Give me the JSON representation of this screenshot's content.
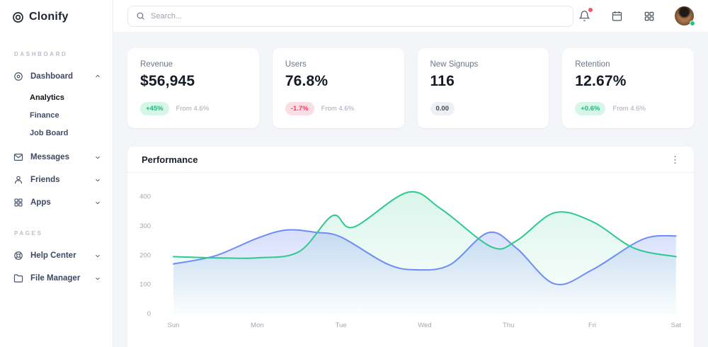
{
  "brand": {
    "name": "Clonify",
    "logo_icon": "clonify-disc-icon"
  },
  "sidebar": {
    "sections": [
      {
        "label": "DASHBOARD",
        "items": [
          {
            "label": "Dashboard",
            "icon": "dashboard-disc-icon",
            "expanded": true,
            "children": [
              "Analytics",
              "Finance",
              "Job Board"
            ],
            "active_child": "Analytics"
          },
          {
            "label": "Messages",
            "icon": "messages-icon",
            "expanded": false
          },
          {
            "label": "Friends",
            "icon": "friends-icon",
            "expanded": false
          },
          {
            "label": "Apps",
            "icon": "apps-icon",
            "expanded": false
          }
        ]
      },
      {
        "label": "PAGES",
        "items": [
          {
            "label": "Help Center",
            "icon": "help-lifebuoy-icon",
            "expanded": false
          },
          {
            "label": "File Manager",
            "icon": "folder-icon",
            "expanded": false
          }
        ]
      }
    ]
  },
  "topbar": {
    "search_placeholder": "Search...",
    "icons": [
      "bell-icon",
      "calendar-icon",
      "apps-grid-icon"
    ],
    "has_notification": true,
    "avatar_status": "online"
  },
  "stats": [
    {
      "title": "Revenue",
      "value": "$56,945",
      "badge": "+45%",
      "badge_type": "positive",
      "note": "From 4.6%"
    },
    {
      "title": "Users",
      "value": "76.8%",
      "badge": "-1.7%",
      "badge_type": "negative",
      "note": "From 4.6%"
    },
    {
      "title": "New Signups",
      "value": "116",
      "badge": "0.00",
      "badge_type": "neutral",
      "note": ""
    },
    {
      "title": "Retention",
      "value": "12.67%",
      "badge": "+0.6%",
      "badge_type": "positive",
      "note": "From 4.6%"
    }
  ],
  "chart_data": {
    "type": "area",
    "title": "Performance",
    "categories": [
      "Sun",
      "Mon",
      "Tue",
      "Wed",
      "Thu",
      "Fri",
      "Sat"
    ],
    "ylim": [
      0,
      400
    ],
    "yticks": [
      0,
      100,
      200,
      300,
      400
    ],
    "grid": false,
    "legend": "none",
    "axis_label_color": "#a0a8b4",
    "series": [
      {
        "name": "series-green",
        "color": "#2fc98f",
        "fill_opacity": 0.18,
        "points": [
          [
            0,
            195
          ],
          [
            0.5,
            191
          ],
          [
            1,
            191
          ],
          [
            1.5,
            212
          ],
          [
            1.9,
            335
          ],
          [
            2.15,
            296
          ],
          [
            2.8,
            415
          ],
          [
            3.2,
            357
          ],
          [
            3.8,
            228
          ],
          [
            4.1,
            250
          ],
          [
            4.55,
            345
          ],
          [
            5,
            315
          ],
          [
            5.5,
            224
          ],
          [
            6,
            195
          ]
        ]
      },
      {
        "name": "series-blue",
        "color": "#6e8cf5",
        "fill_opacity": 0.28,
        "points": [
          [
            0,
            170
          ],
          [
            0.5,
            198
          ],
          [
            1,
            258
          ],
          [
            1.35,
            286
          ],
          [
            1.7,
            278
          ],
          [
            2,
            262
          ],
          [
            2.55,
            170
          ],
          [
            2.9,
            150
          ],
          [
            3.3,
            167
          ],
          [
            3.76,
            277
          ],
          [
            4.1,
            223
          ],
          [
            4.55,
            102
          ],
          [
            5,
            150
          ],
          [
            5.6,
            254
          ],
          [
            6,
            266
          ]
        ]
      }
    ]
  }
}
